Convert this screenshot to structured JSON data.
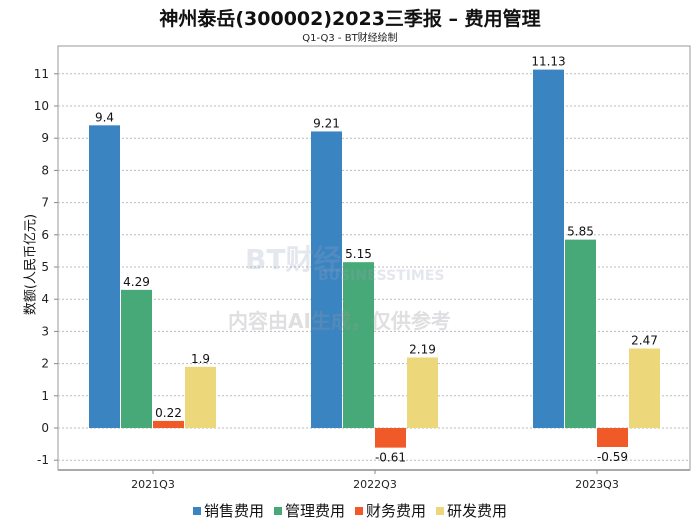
{
  "chart_data": {
    "type": "bar",
    "title": "神州泰岳(300002)2023三季报 – 费用管理",
    "subtitle": "Q1-Q3 - BT财经绘制",
    "ylabel": "数额(人民币亿元)",
    "xlabel": "",
    "categories": [
      "2021Q3",
      "2022Q3",
      "2023Q3"
    ],
    "series": [
      {
        "name": "销售费用",
        "color": "#3a84c1",
        "values": [
          9.4,
          9.21,
          11.13
        ],
        "labels": [
          "9.4",
          "9.21",
          "11.13"
        ]
      },
      {
        "name": "管理费用",
        "color": "#48a978",
        "values": [
          4.29,
          5.15,
          5.85
        ],
        "labels": [
          "4.29",
          "5.15",
          "5.85"
        ]
      },
      {
        "name": "财务费用",
        "color": "#ef5a28",
        "values": [
          0.22,
          -0.61,
          -0.59
        ],
        "labels": [
          "0.22",
          "-0.61",
          "-0.59"
        ]
      },
      {
        "name": "研发费用",
        "color": "#ecd77a",
        "values": [
          1.9,
          2.19,
          2.47
        ],
        "labels": [
          "1.9",
          "2.19",
          "2.47"
        ]
      }
    ],
    "ylim": [
      -1.2,
      11.9
    ],
    "yticks": [
      -1,
      0,
      1,
      2,
      3,
      4,
      5,
      6,
      7,
      8,
      9,
      10,
      11
    ],
    "grid": true,
    "legend": "bottom"
  },
  "watermark": {
    "brand": "BT财经",
    "brand_en": "BUSINESSTIMES",
    "notice": "内容由AI生成，仅供参考"
  }
}
